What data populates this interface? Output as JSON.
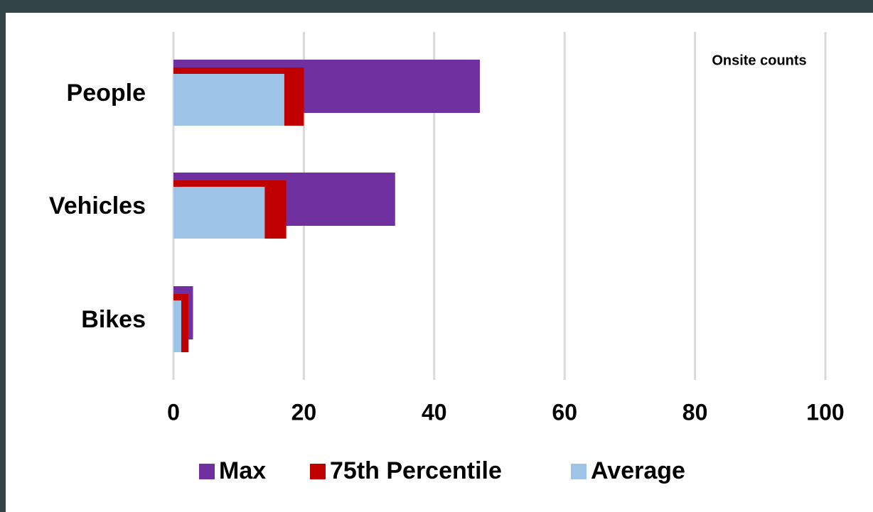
{
  "chart_data": {
    "type": "bar",
    "orientation": "horizontal",
    "annotation": "Onsite counts",
    "categories": [
      "People",
      "Vehicles",
      "Bikes"
    ],
    "series": [
      {
        "name": "Max",
        "color": "#7030a0",
        "values": [
          47,
          34,
          3
        ]
      },
      {
        "name": "75th Percentile",
        "color": "#c00000",
        "values": [
          20,
          17.3,
          2.3
        ]
      },
      {
        "name": "Average",
        "color": "#9dc3e6",
        "values": [
          17,
          14,
          1.2
        ]
      }
    ],
    "xlim": [
      0,
      100
    ],
    "xticks": [
      0,
      20,
      40,
      60,
      80,
      100
    ],
    "grid": true,
    "legend": "bottom"
  }
}
